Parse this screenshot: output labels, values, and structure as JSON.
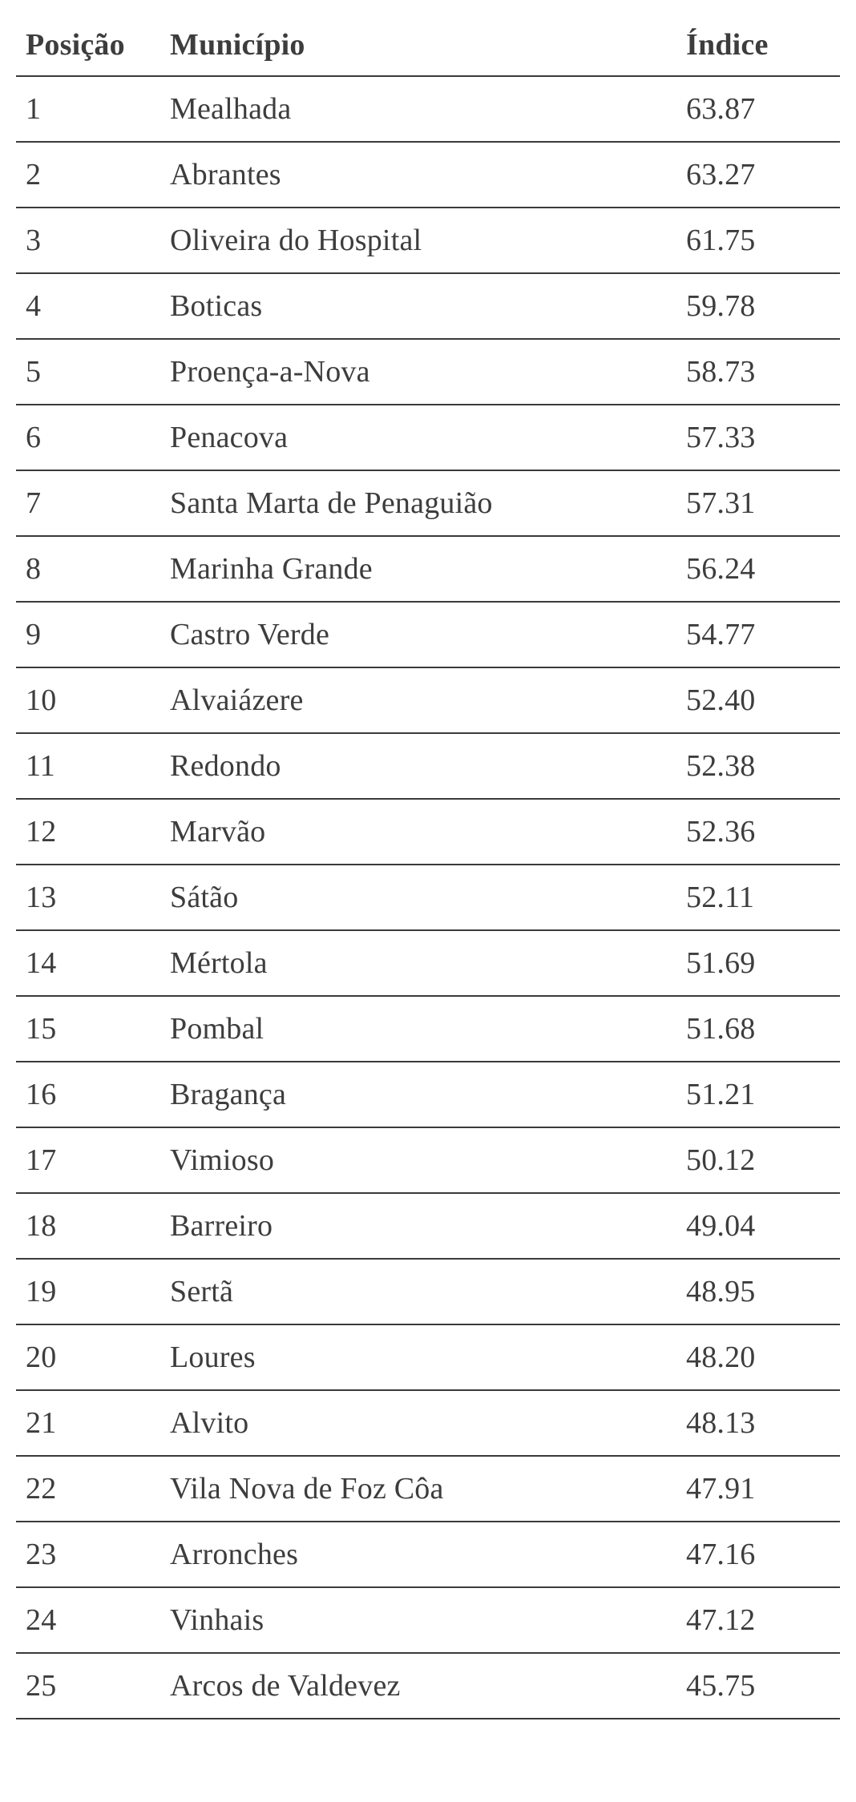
{
  "table": {
    "type": "table",
    "columns": [
      {
        "key": "posicao",
        "label": "Posição",
        "width": 180,
        "align": "left"
      },
      {
        "key": "municipio",
        "label": "Município",
        "width": "flex",
        "align": "left"
      },
      {
        "key": "indice",
        "label": "Índice",
        "width": 180,
        "align": "left"
      }
    ],
    "rows": [
      {
        "posicao": "1",
        "municipio": "Mealhada",
        "indice": "63.87"
      },
      {
        "posicao": "2",
        "municipio": "Abrantes",
        "indice": "63.27"
      },
      {
        "posicao": "3",
        "municipio": "Oliveira do Hospital",
        "indice": "61.75"
      },
      {
        "posicao": "4",
        "municipio": "Boticas",
        "indice": "59.78"
      },
      {
        "posicao": "5",
        "municipio": "Proença-a-Nova",
        "indice": "58.73"
      },
      {
        "posicao": "6",
        "municipio": "Penacova",
        "indice": "57.33"
      },
      {
        "posicao": "7",
        "municipio": "Santa Marta de Penaguião",
        "indice": "57.31"
      },
      {
        "posicao": "8",
        "municipio": "Marinha Grande",
        "indice": "56.24"
      },
      {
        "posicao": "9",
        "municipio": "Castro Verde",
        "indice": "54.77"
      },
      {
        "posicao": "10",
        "municipio": "Alvaiázere",
        "indice": "52.40"
      },
      {
        "posicao": "11",
        "municipio": "Redondo",
        "indice": "52.38"
      },
      {
        "posicao": "12",
        "municipio": "Marvão",
        "indice": "52.36"
      },
      {
        "posicao": "13",
        "municipio": "Sátão",
        "indice": "52.11"
      },
      {
        "posicao": "14",
        "municipio": "Mértola",
        "indice": "51.69"
      },
      {
        "posicao": "15",
        "municipio": "Pombal",
        "indice": "51.68"
      },
      {
        "posicao": "16",
        "municipio": "Bragança",
        "indice": "51.21"
      },
      {
        "posicao": "17",
        "municipio": "Vimioso",
        "indice": "50.12"
      },
      {
        "posicao": "18",
        "municipio": "Barreiro",
        "indice": "49.04"
      },
      {
        "posicao": "19",
        "municipio": "Sertã",
        "indice": "48.95"
      },
      {
        "posicao": "20",
        "municipio": "Loures",
        "indice": "48.20"
      },
      {
        "posicao": "21",
        "municipio": "Alvito",
        "indice": "48.13"
      },
      {
        "posicao": "22",
        "municipio": "Vila Nova de Foz Côa",
        "indice": "47.91"
      },
      {
        "posicao": "23",
        "municipio": "Arronches",
        "indice": "47.16"
      },
      {
        "posicao": "24",
        "municipio": "Vinhais",
        "indice": "47.12"
      },
      {
        "posicao": "25",
        "municipio": "Arcos de Valdevez",
        "indice": "45.75"
      }
    ],
    "styling": {
      "background_color": "#ffffff",
      "text_color": "#3d3d3d",
      "border_color": "#3a3a3a",
      "border_width": 2,
      "header_fontsize": 38,
      "header_fontweight": 600,
      "cell_fontsize": 38,
      "cell_fontweight": 400,
      "font_family": "Georgia, serif",
      "row_padding_vertical": 18,
      "row_padding_horizontal": 12
    }
  }
}
